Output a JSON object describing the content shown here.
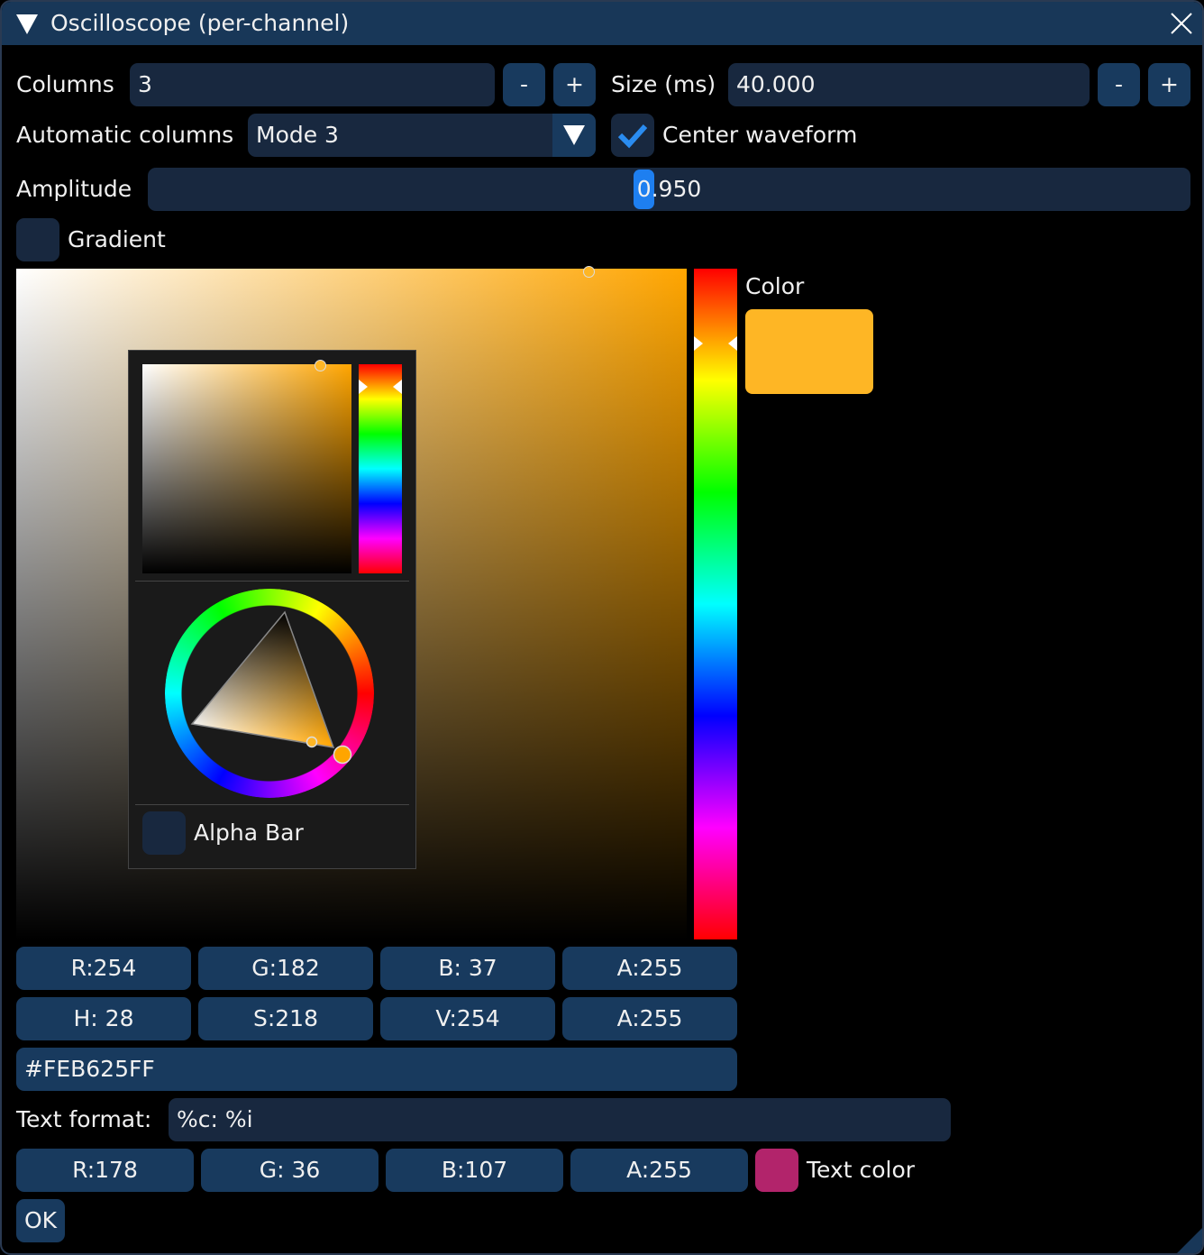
{
  "window": {
    "title": "Oscilloscope (per-channel)"
  },
  "row1": {
    "columns_label": "Columns",
    "columns_value": "3",
    "minus": "-",
    "plus": "+",
    "size_label": "Size (ms)",
    "size_value": "40.000"
  },
  "row2": {
    "auto_label": "Automatic columns",
    "mode_value": "Mode 3",
    "center_label": "Center waveform",
    "center_checked": true
  },
  "amplitude": {
    "label": "Amplitude",
    "value": "0.950",
    "fraction": 0.465
  },
  "gradient": {
    "label": "Gradient",
    "checked": false
  },
  "picker": {
    "color_label": "Color",
    "color_hex": "#FEB625",
    "hue_deg": 28,
    "popup": {
      "alpha_bar_label": "Alpha Bar",
      "alpha_bar_checked": false
    },
    "rgba": [
      "R:254",
      "G:182",
      "B: 37",
      "A:255"
    ],
    "hsva": [
      "H: 28",
      "S:218",
      "V:254",
      "A:255"
    ],
    "hex": "#FEB625FF"
  },
  "text_format": {
    "label": "Text format:",
    "value": "%c: %i"
  },
  "text_color": {
    "rgba": [
      "R:178",
      "G: 36",
      "B:107",
      "A:255"
    ],
    "swatch": "#B2246B",
    "label": "Text color"
  },
  "ok": "OK",
  "colors": {
    "accent": "#2A8CF0",
    "frame": "#18283F",
    "button": "#183A5E",
    "titlebar": "#183758"
  }
}
